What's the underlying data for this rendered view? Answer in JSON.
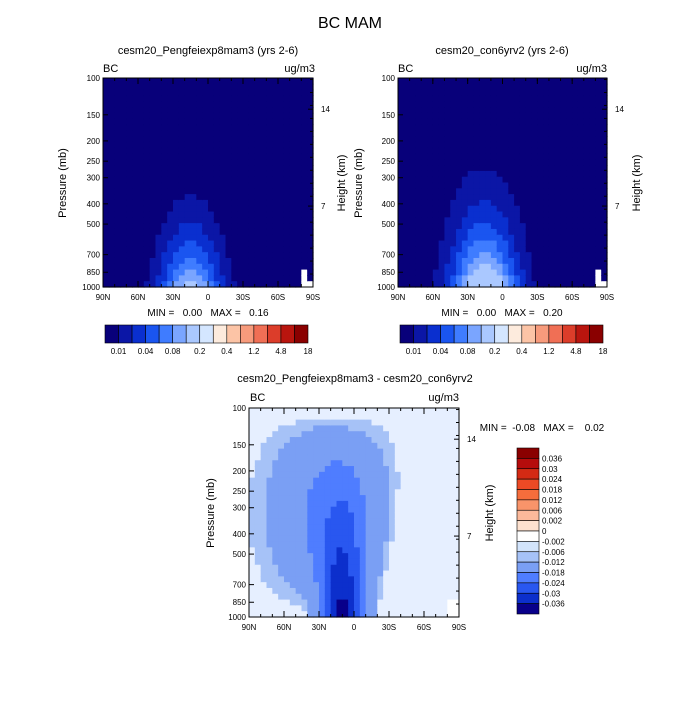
{
  "figure_title": "BC MAM",
  "panels": [
    {
      "title": "cesm20_Pengfeiexp8mam3 (yrs 2-6)",
      "left_label": "BC",
      "right_label": "ug/m3",
      "ylabel": "Pressure (mb)",
      "ylabel_right": "Height (km)",
      "min_max_text": "MIN =   0.00   MAX =   0.16",
      "palette": "abs"
    },
    {
      "title": "cesm20_con6yrv2 (yrs 2-6)",
      "left_label": "BC",
      "right_label": "ug/m3",
      "ylabel": "Pressure (mb)",
      "ylabel_right": "Height (km)",
      "min_max_text": "MIN =   0.00   MAX =   0.20",
      "palette": "abs"
    },
    {
      "title": "cesm20_Pengfeiexp8mam3 - cesm20_con6yrv2",
      "left_label": "BC",
      "right_label": "ug/m3",
      "ylabel": "Pressure (mb)",
      "ylabel_right": "Height (km)",
      "min_max_text": "MIN =  -0.08   MAX =    0.02",
      "palette": "diff"
    }
  ],
  "axes": {
    "x_ticks": [
      "90N",
      "60N",
      "30N",
      "0",
      "30S",
      "60S",
      "90S"
    ],
    "y_ticks": [
      "100",
      "150",
      "200",
      "250",
      "300",
      "400",
      "500",
      "700",
      "850",
      "1000"
    ],
    "y_right_ticks": [
      "14",
      "7"
    ]
  },
  "colorbar_abs": {
    "labels": [
      "0.01",
      "0.04",
      "0.08",
      "0.2",
      "0.4",
      "1.2",
      "4.8",
      "18"
    ],
    "colors": [
      "#08007a",
      "#0b16a6",
      "#0a2fcf",
      "#1a55f0",
      "#3f7cff",
      "#7aa5ff",
      "#aac8ff",
      "#d4e6ff",
      "#fdebdd",
      "#fcc4a6",
      "#f79b7c",
      "#f06f55",
      "#dc3d2a",
      "#b9150e",
      "#8a0000"
    ]
  },
  "colorbar_diff": {
    "labels": [
      "0.036",
      "0.03",
      "0.024",
      "0.018",
      "0.012",
      "0.006",
      "0.002",
      "0",
      "-0.002",
      "-0.006",
      "-0.012",
      "-0.018",
      "-0.024",
      "-0.03",
      "-0.036"
    ],
    "colors": [
      "#8a0000",
      "#b50c0c",
      "#d42a14",
      "#ec4a25",
      "#f56d3c",
      "#f9946a",
      "#fcb99b",
      "#fde1cf",
      "#ffffff",
      "#d2e4fc",
      "#a6c2f7",
      "#7a9ff4",
      "#4f7dff",
      "#2957f0",
      "#0c2fcc",
      "#08008a"
    ]
  },
  "chart_data": [
    {
      "type": "heatmap",
      "title": "cesm20_Pengfeiexp8mam3 (yrs 2-6)",
      "xlabel": "",
      "ylabel": "Pressure (mb)",
      "x_range": [
        "90N",
        "90S"
      ],
      "y_range_mb": [
        1000,
        100
      ],
      "y_scale": "log",
      "min": 0.0,
      "max": 0.16,
      "contour_levels": [
        0.01,
        0.02,
        0.04,
        0.06,
        0.08,
        0.1,
        0.2,
        0.3,
        0.4,
        0.8,
        1.2,
        2.4,
        4.8,
        9.6,
        18
      ]
    },
    {
      "type": "heatmap",
      "title": "cesm20_con6yrv2 (yrs 2-6)",
      "xlabel": "",
      "ylabel": "Pressure (mb)",
      "x_range": [
        "90N",
        "90S"
      ],
      "y_range_mb": [
        1000,
        100
      ],
      "y_scale": "log",
      "min": 0.0,
      "max": 0.2,
      "contour_levels": [
        0.01,
        0.02,
        0.04,
        0.06,
        0.08,
        0.1,
        0.2,
        0.3,
        0.4,
        0.8,
        1.2,
        2.4,
        4.8,
        9.6,
        18
      ]
    },
    {
      "type": "heatmap",
      "title": "cesm20_Pengfeiexp8mam3 - cesm20_con6yrv2",
      "xlabel": "",
      "ylabel": "Pressure (mb)",
      "x_range": [
        "90N",
        "90S"
      ],
      "y_range_mb": [
        1000,
        100
      ],
      "y_scale": "log",
      "min": -0.08,
      "max": 0.02,
      "contour_levels": [
        -0.036,
        -0.03,
        -0.024,
        -0.018,
        -0.012,
        -0.006,
        -0.002,
        0,
        0.002,
        0.006,
        0.012,
        0.018,
        0.024,
        0.03,
        0.036
      ]
    }
  ]
}
